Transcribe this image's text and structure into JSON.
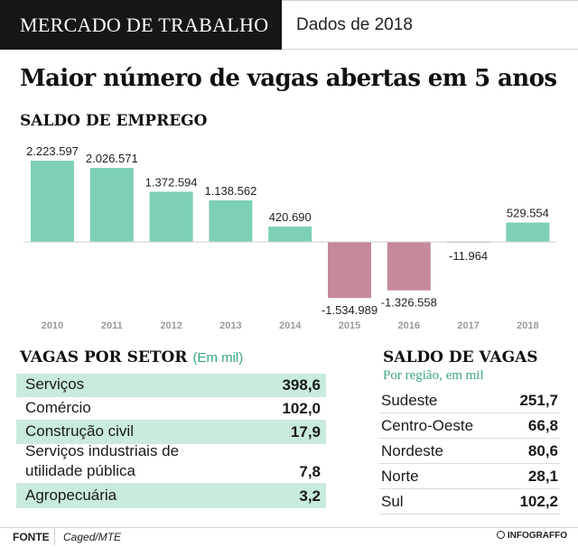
{
  "header": {
    "section": "MERCADO DE TRABALHO",
    "date": "Dados de 2018"
  },
  "headline": "Maior número de vagas abertas em 5 anos",
  "chart_data": {
    "type": "bar",
    "title": "SALDO DE EMPREGO",
    "categories": [
      "2010",
      "2011",
      "2012",
      "2013",
      "2014",
      "2015",
      "2016",
      "2017",
      "2018"
    ],
    "values": [
      2223597,
      2026571,
      1372594,
      1138562,
      420690,
      -1534989,
      -1326558,
      -11964,
      529554
    ],
    "labels": [
      "2.223.597",
      "2.026.571",
      "1.372.594",
      "1.138.562",
      "420.690",
      "-1.534.989",
      "-1.326.558",
      "-11.964",
      "529.554"
    ],
    "colors": {
      "positive": "#7ecfb8",
      "negative": "#c6899a"
    }
  },
  "sectors": {
    "title": "VAGAS POR SETOR",
    "note": "(Em mil)",
    "rows": [
      {
        "label": "Serviços",
        "value": "398,6"
      },
      {
        "label": "Comércio",
        "value": "102,0"
      },
      {
        "label": "Construção civil",
        "value": "17,9"
      },
      {
        "label": "Serviços industriais de\nutilidade pública",
        "value": "7,8"
      },
      {
        "label": "Agropecuária",
        "value": "3,2"
      }
    ]
  },
  "regions": {
    "title": "SALDO DE VAGAS",
    "subtitle": "Por região, em mil",
    "rows": [
      {
        "label": "Sudeste",
        "value": "251,7"
      },
      {
        "label": "Centro-Oeste",
        "value": "66,8"
      },
      {
        "label": "Nordeste",
        "value": "80,6"
      },
      {
        "label": "Norte",
        "value": "28,1"
      },
      {
        "label": "Sul",
        "value": "102,2"
      }
    ]
  },
  "footer": {
    "source_label": "FONTE",
    "source": "Caged/MTE",
    "brand": "INFOGRAFFO"
  }
}
